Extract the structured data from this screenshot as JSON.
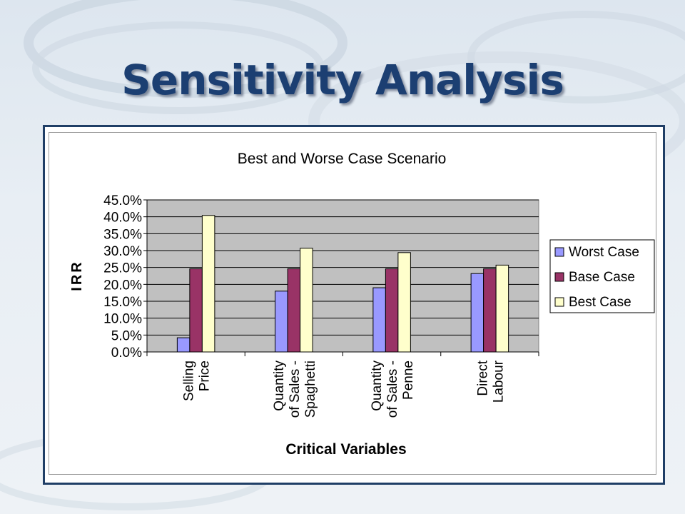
{
  "slide": {
    "title": "Sensitivity Analysis"
  },
  "chart_data": {
    "type": "bar",
    "title": "Best and Worse Case Scenario",
    "xlabel": "Critical Variables",
    "ylabel": "IRR",
    "categories": [
      [
        "Selling",
        "Price"
      ],
      [
        "Quantity",
        "of Sales -",
        "Spaghetti"
      ],
      [
        "Quantity",
        "of Sales -",
        "Penne"
      ],
      [
        "Direct",
        "Labour"
      ]
    ],
    "series": [
      {
        "name": "Worst Case",
        "color": "#9999ff",
        "values": [
          4.2,
          18.0,
          19.0,
          23.2
        ]
      },
      {
        "name": "Base Case",
        "color": "#993366",
        "values": [
          24.6,
          24.6,
          24.6,
          24.6
        ]
      },
      {
        "name": "Best Case",
        "color": "#ffffcc",
        "values": [
          40.4,
          30.7,
          29.4,
          25.7
        ]
      }
    ],
    "ylim": [
      0,
      45
    ],
    "yticks": [
      "0.0%",
      "5.0%",
      "10.0%",
      "15.0%",
      "20.0%",
      "25.0%",
      "30.0%",
      "35.0%",
      "40.0%",
      "45.0%"
    ],
    "plot_background": "#c0c0c0",
    "grid": true,
    "legend": "right"
  }
}
